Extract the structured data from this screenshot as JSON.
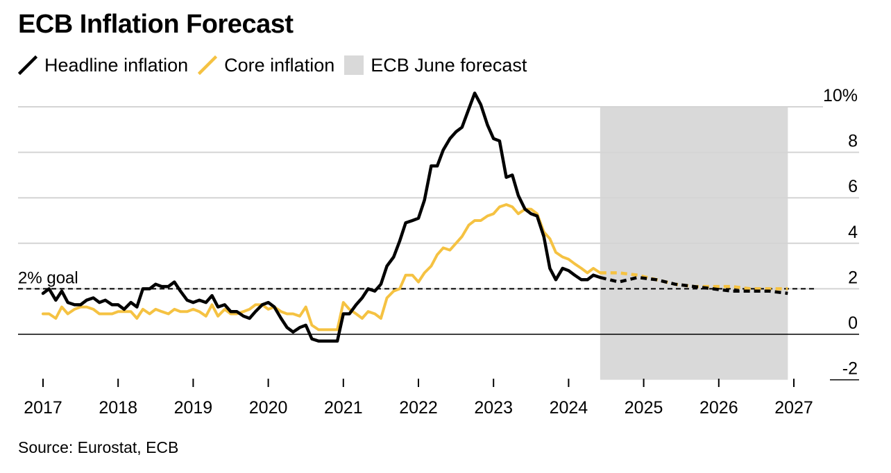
{
  "chart_data": {
    "type": "line",
    "title": "ECB Inflation Forecast",
    "source": "Source: Eurostat, ECB",
    "unit_suffix": "%",
    "xlim": [
      2017.0,
      2027.3
    ],
    "ylim": [
      -2,
      10
    ],
    "x_ticks": [
      2017,
      2018,
      2019,
      2020,
      2021,
      2022,
      2023,
      2024,
      2025,
      2026,
      2027
    ],
    "y_ticks": [
      -2,
      0,
      2,
      4,
      6,
      8,
      10
    ],
    "grid": true,
    "legend_position": "top-left",
    "goal": {
      "label": "2% goal",
      "value": 2
    },
    "forecast_region": {
      "label": "ECB June forecast",
      "x_start": 2024.42,
      "x_end": 2026.92,
      "color": "#d9d9d9"
    },
    "series": [
      {
        "name": "Headline inflation",
        "color": "#000000",
        "actual": [
          [
            2017.0,
            1.8
          ],
          [
            2017.08,
            2.0
          ],
          [
            2017.17,
            1.5
          ],
          [
            2017.25,
            1.9
          ],
          [
            2017.33,
            1.4
          ],
          [
            2017.42,
            1.3
          ],
          [
            2017.5,
            1.3
          ],
          [
            2017.58,
            1.5
          ],
          [
            2017.67,
            1.6
          ],
          [
            2017.75,
            1.4
          ],
          [
            2017.83,
            1.5
          ],
          [
            2017.92,
            1.3
          ],
          [
            2018.0,
            1.3
          ],
          [
            2018.08,
            1.1
          ],
          [
            2018.17,
            1.4
          ],
          [
            2018.25,
            1.2
          ],
          [
            2018.33,
            2.0
          ],
          [
            2018.42,
            2.0
          ],
          [
            2018.5,
            2.2
          ],
          [
            2018.58,
            2.1
          ],
          [
            2018.67,
            2.1
          ],
          [
            2018.75,
            2.3
          ],
          [
            2018.83,
            1.9
          ],
          [
            2018.92,
            1.5
          ],
          [
            2019.0,
            1.4
          ],
          [
            2019.08,
            1.5
          ],
          [
            2019.17,
            1.4
          ],
          [
            2019.25,
            1.7
          ],
          [
            2019.33,
            1.2
          ],
          [
            2019.42,
            1.3
          ],
          [
            2019.5,
            1.0
          ],
          [
            2019.58,
            1.0
          ],
          [
            2019.67,
            0.8
          ],
          [
            2019.75,
            0.7
          ],
          [
            2019.83,
            1.0
          ],
          [
            2019.92,
            1.3
          ],
          [
            2020.0,
            1.4
          ],
          [
            2020.08,
            1.2
          ],
          [
            2020.17,
            0.7
          ],
          [
            2020.25,
            0.3
          ],
          [
            2020.33,
            0.1
          ],
          [
            2020.42,
            0.3
          ],
          [
            2020.5,
            0.4
          ],
          [
            2020.58,
            -0.2
          ],
          [
            2020.67,
            -0.3
          ],
          [
            2020.75,
            -0.3
          ],
          [
            2020.83,
            -0.3
          ],
          [
            2020.92,
            -0.3
          ],
          [
            2021.0,
            0.9
          ],
          [
            2021.08,
            0.9
          ],
          [
            2021.17,
            1.3
          ],
          [
            2021.25,
            1.6
          ],
          [
            2021.33,
            2.0
          ],
          [
            2021.42,
            1.9
          ],
          [
            2021.5,
            2.2
          ],
          [
            2021.58,
            3.0
          ],
          [
            2021.67,
            3.4
          ],
          [
            2021.75,
            4.1
          ],
          [
            2021.83,
            4.9
          ],
          [
            2021.92,
            5.0
          ],
          [
            2022.0,
            5.1
          ],
          [
            2022.08,
            5.9
          ],
          [
            2022.17,
            7.4
          ],
          [
            2022.25,
            7.4
          ],
          [
            2022.33,
            8.1
          ],
          [
            2022.42,
            8.6
          ],
          [
            2022.5,
            8.9
          ],
          [
            2022.58,
            9.1
          ],
          [
            2022.67,
            9.9
          ],
          [
            2022.75,
            10.6
          ],
          [
            2022.83,
            10.1
          ],
          [
            2022.92,
            9.2
          ],
          [
            2023.0,
            8.6
          ],
          [
            2023.08,
            8.5
          ],
          [
            2023.17,
            6.9
          ],
          [
            2023.25,
            7.0
          ],
          [
            2023.33,
            6.1
          ],
          [
            2023.42,
            5.5
          ],
          [
            2023.5,
            5.3
          ],
          [
            2023.58,
            5.2
          ],
          [
            2023.67,
            4.3
          ],
          [
            2023.75,
            2.9
          ],
          [
            2023.83,
            2.4
          ],
          [
            2023.92,
            2.9
          ],
          [
            2024.0,
            2.8
          ],
          [
            2024.08,
            2.6
          ],
          [
            2024.17,
            2.4
          ],
          [
            2024.25,
            2.4
          ],
          [
            2024.33,
            2.6
          ],
          [
            2024.42,
            2.5
          ]
        ],
        "forecast": [
          [
            2024.42,
            2.5
          ],
          [
            2024.67,
            2.3
          ],
          [
            2024.92,
            2.5
          ],
          [
            2025.17,
            2.4
          ],
          [
            2025.42,
            2.2
          ],
          [
            2025.67,
            2.1
          ],
          [
            2025.92,
            2.0
          ],
          [
            2026.17,
            1.9
          ],
          [
            2026.42,
            1.9
          ],
          [
            2026.67,
            1.9
          ],
          [
            2026.92,
            1.8
          ]
        ]
      },
      {
        "name": "Core inflation",
        "color": "#f5c242",
        "actual": [
          [
            2017.0,
            0.9
          ],
          [
            2017.08,
            0.9
          ],
          [
            2017.17,
            0.7
          ],
          [
            2017.25,
            1.2
          ],
          [
            2017.33,
            0.9
          ],
          [
            2017.42,
            1.1
          ],
          [
            2017.5,
            1.2
          ],
          [
            2017.58,
            1.2
          ],
          [
            2017.67,
            1.1
          ],
          [
            2017.75,
            0.9
          ],
          [
            2017.83,
            0.9
          ],
          [
            2017.92,
            0.9
          ],
          [
            2018.0,
            1.0
          ],
          [
            2018.08,
            1.0
          ],
          [
            2018.17,
            1.0
          ],
          [
            2018.25,
            0.7
          ],
          [
            2018.33,
            1.1
          ],
          [
            2018.42,
            0.9
          ],
          [
            2018.5,
            1.1
          ],
          [
            2018.58,
            1.0
          ],
          [
            2018.67,
            0.9
          ],
          [
            2018.75,
            1.1
          ],
          [
            2018.83,
            1.0
          ],
          [
            2018.92,
            1.0
          ],
          [
            2019.0,
            1.1
          ],
          [
            2019.08,
            1.0
          ],
          [
            2019.17,
            0.8
          ],
          [
            2019.25,
            1.3
          ],
          [
            2019.33,
            0.8
          ],
          [
            2019.42,
            1.1
          ],
          [
            2019.5,
            0.9
          ],
          [
            2019.58,
            0.9
          ],
          [
            2019.67,
            1.0
          ],
          [
            2019.75,
            1.1
          ],
          [
            2019.83,
            1.3
          ],
          [
            2019.92,
            1.3
          ],
          [
            2020.0,
            1.1
          ],
          [
            2020.08,
            1.2
          ],
          [
            2020.17,
            1.0
          ],
          [
            2020.25,
            0.9
          ],
          [
            2020.33,
            0.9
          ],
          [
            2020.42,
            0.8
          ],
          [
            2020.5,
            1.2
          ],
          [
            2020.58,
            0.4
          ],
          [
            2020.67,
            0.2
          ],
          [
            2020.75,
            0.2
          ],
          [
            2020.83,
            0.2
          ],
          [
            2020.92,
            0.2
          ],
          [
            2021.0,
            1.4
          ],
          [
            2021.08,
            1.1
          ],
          [
            2021.17,
            0.9
          ],
          [
            2021.25,
            0.7
          ],
          [
            2021.33,
            1.0
          ],
          [
            2021.42,
            0.9
          ],
          [
            2021.5,
            0.7
          ],
          [
            2021.58,
            1.6
          ],
          [
            2021.67,
            1.9
          ],
          [
            2021.75,
            2.0
          ],
          [
            2021.83,
            2.6
          ],
          [
            2021.92,
            2.6
          ],
          [
            2022.0,
            2.3
          ],
          [
            2022.08,
            2.7
          ],
          [
            2022.17,
            3.0
          ],
          [
            2022.25,
            3.5
          ],
          [
            2022.33,
            3.8
          ],
          [
            2022.42,
            3.7
          ],
          [
            2022.5,
            4.0
          ],
          [
            2022.58,
            4.3
          ],
          [
            2022.67,
            4.8
          ],
          [
            2022.75,
            5.0
          ],
          [
            2022.83,
            5.0
          ],
          [
            2022.92,
            5.2
          ],
          [
            2023.0,
            5.3
          ],
          [
            2023.08,
            5.6
          ],
          [
            2023.17,
            5.7
          ],
          [
            2023.25,
            5.6
          ],
          [
            2023.33,
            5.3
          ],
          [
            2023.42,
            5.5
          ],
          [
            2023.5,
            5.5
          ],
          [
            2023.58,
            5.3
          ],
          [
            2023.67,
            4.5
          ],
          [
            2023.75,
            4.2
          ],
          [
            2023.83,
            3.6
          ],
          [
            2023.92,
            3.4
          ],
          [
            2024.0,
            3.3
          ],
          [
            2024.08,
            3.1
          ],
          [
            2024.17,
            2.9
          ],
          [
            2024.25,
            2.7
          ],
          [
            2024.33,
            2.9
          ],
          [
            2024.42,
            2.7
          ]
        ],
        "forecast": [
          [
            2024.42,
            2.7
          ],
          [
            2024.67,
            2.7
          ],
          [
            2024.92,
            2.6
          ],
          [
            2025.17,
            2.4
          ],
          [
            2025.42,
            2.2
          ],
          [
            2025.67,
            2.1
          ],
          [
            2025.92,
            2.1
          ],
          [
            2026.17,
            2.1
          ],
          [
            2026.42,
            2.0
          ],
          [
            2026.67,
            2.0
          ],
          [
            2026.92,
            2.0
          ]
        ]
      }
    ]
  }
}
